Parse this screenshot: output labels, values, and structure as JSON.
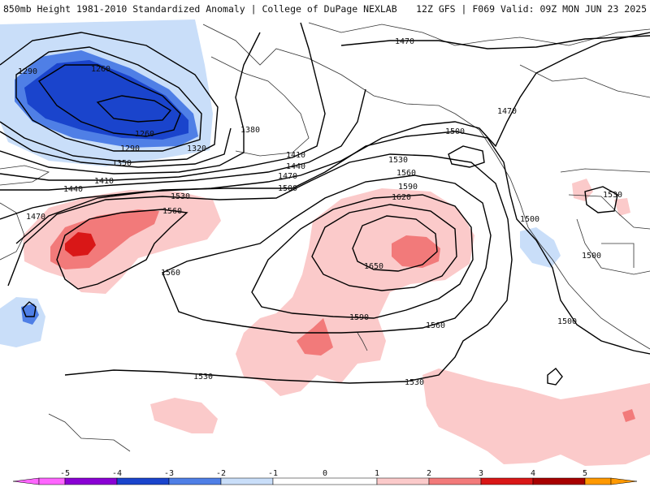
{
  "header": {
    "title_left": "850mb Height 1981-2010 Standardized Anomaly | College of DuPage NEXLAB",
    "title_right": "12Z GFS | F069 Valid: 09Z MON JUN 23 2025"
  },
  "colors": {
    "neg5": "#ff66ff",
    "neg4": "#8a00d4",
    "neg3": "#1a44cc",
    "neg2": "#4f7fe6",
    "neg1": "#c9def9",
    "zero": "#ffffff",
    "pos1": "#fbcaca",
    "pos2": "#f27a7a",
    "pos3": "#d91717",
    "pos4": "#a80000",
    "pos5": "#ff9900",
    "contour": "#000000",
    "coast": "#333333"
  },
  "contour_labels": [
    "1290",
    "1260",
    "1260",
    "1290",
    "1320",
    "1350",
    "1380",
    "1410",
    "1410",
    "1440",
    "1440",
    "1470",
    "1470",
    "1470",
    "1470",
    "1500",
    "1500",
    "1500",
    "1500",
    "1500",
    "1530",
    "1530",
    "1530",
    "1530",
    "1530",
    "1560",
    "1560",
    "1560",
    "1560",
    "1590",
    "1590",
    "1620",
    "1650"
  ],
  "colorbar": {
    "ticks": [
      "-5",
      "-4",
      "-3",
      "-2",
      "-1",
      "0",
      "1",
      "2",
      "3",
      "4",
      "5"
    ]
  }
}
